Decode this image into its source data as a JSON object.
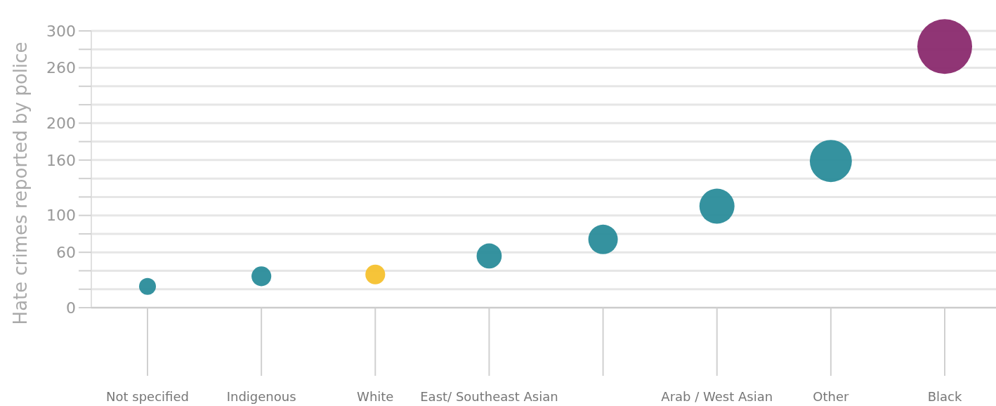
{
  "chart_data": {
    "type": "bubble",
    "ylabel": "Hate crimes reported by police",
    "categories": [
      "Not specified",
      "Indigenous",
      "White",
      "East/ Southeast Asian",
      null,
      "Arab / West Asian",
      "Other",
      "Black"
    ],
    "values": [
      23,
      34,
      36,
      56,
      74,
      110,
      159,
      283
    ],
    "sizes": [
      0.095,
      0.13,
      0.13,
      0.21,
      0.29,
      0.41,
      0.59,
      1
    ],
    "colors": [
      "#2a8c9a",
      "#2a8c9a",
      "#f5c12e",
      "#2a8c9a",
      "#2a8c9a",
      "#2a8c9a",
      "#2a8c9a",
      "#8a2a6e"
    ],
    "ylim": [
      0,
      300
    ],
    "yticks": [
      0,
      {
        "value": 20,
        "label": null
      },
      {
        "value": 40,
        "label": null
      },
      60,
      {
        "value": 80,
        "label": null
      },
      100,
      {
        "value": 120,
        "label": null
      },
      {
        "value": 140,
        "label": null
      },
      160,
      {
        "value": 180,
        "label": null
      },
      200,
      {
        "value": 220,
        "label": null
      },
      {
        "value": 240,
        "label": null
      },
      260,
      {
        "value": 280,
        "label": null
      },
      300
    ],
    "grid": "y"
  }
}
